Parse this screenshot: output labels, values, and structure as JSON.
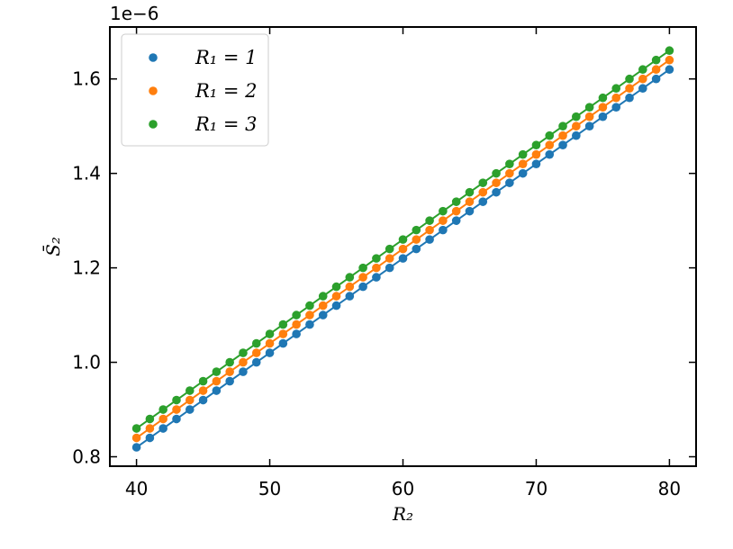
{
  "chart_data": {
    "type": "line",
    "xlabel": "R₂",
    "ylabel": "S̄₂",
    "y_offset_label": "1e−6",
    "y_scale": 1e-06,
    "xlim": [
      38,
      82
    ],
    "ylim": [
      0.78,
      1.71
    ],
    "x_ticks": [
      40,
      50,
      60,
      70,
      80
    ],
    "x_tick_labels": [
      "40",
      "50",
      "60",
      "70",
      "80"
    ],
    "y_ticks": [
      0.8,
      1.0,
      1.2,
      1.4,
      1.6
    ],
    "y_tick_labels": [
      "0.8",
      "1.0",
      "1.2",
      "1.4",
      "1.6"
    ],
    "grid": false,
    "legend_position": "top-left",
    "x": [
      40,
      41,
      42,
      43,
      44,
      45,
      46,
      47,
      48,
      49,
      50,
      51,
      52,
      53,
      54,
      55,
      56,
      57,
      58,
      59,
      60,
      61,
      62,
      63,
      64,
      65,
      66,
      67,
      68,
      69,
      70,
      71,
      72,
      73,
      74,
      75,
      76,
      77,
      78,
      79,
      80
    ],
    "series": [
      {
        "name": "R₁ = 1",
        "color": "#1f77b4",
        "values": [
          0.82,
          0.84,
          0.86,
          0.88,
          0.9,
          0.92,
          0.94,
          0.96,
          0.98,
          1.0,
          1.02,
          1.04,
          1.06,
          1.08,
          1.1,
          1.12,
          1.14,
          1.16,
          1.18,
          1.2,
          1.22,
          1.24,
          1.26,
          1.28,
          1.3,
          1.32,
          1.34,
          1.36,
          1.38,
          1.4,
          1.42,
          1.44,
          1.46,
          1.48,
          1.5,
          1.52,
          1.54,
          1.56,
          1.58,
          1.6,
          1.62
        ]
      },
      {
        "name": "R₁ = 2",
        "color": "#ff7f0e",
        "values": [
          0.84,
          0.86,
          0.88,
          0.9,
          0.92,
          0.94,
          0.96,
          0.98,
          1.0,
          1.02,
          1.04,
          1.06,
          1.08,
          1.1,
          1.12,
          1.14,
          1.16,
          1.18,
          1.2,
          1.22,
          1.24,
          1.26,
          1.28,
          1.3,
          1.32,
          1.34,
          1.36,
          1.38,
          1.4,
          1.42,
          1.44,
          1.46,
          1.48,
          1.5,
          1.52,
          1.54,
          1.56,
          1.58,
          1.6,
          1.62,
          1.64
        ]
      },
      {
        "name": "R₁ = 3",
        "color": "#2ca02c",
        "values": [
          0.86,
          0.88,
          0.9,
          0.92,
          0.94,
          0.96,
          0.98,
          1.0,
          1.02,
          1.04,
          1.06,
          1.08,
          1.1,
          1.12,
          1.14,
          1.16,
          1.18,
          1.2,
          1.22,
          1.24,
          1.26,
          1.28,
          1.3,
          1.32,
          1.34,
          1.36,
          1.38,
          1.4,
          1.42,
          1.44,
          1.46,
          1.48,
          1.5,
          1.52,
          1.54,
          1.56,
          1.58,
          1.6,
          1.62,
          1.64,
          1.66
        ]
      }
    ]
  }
}
